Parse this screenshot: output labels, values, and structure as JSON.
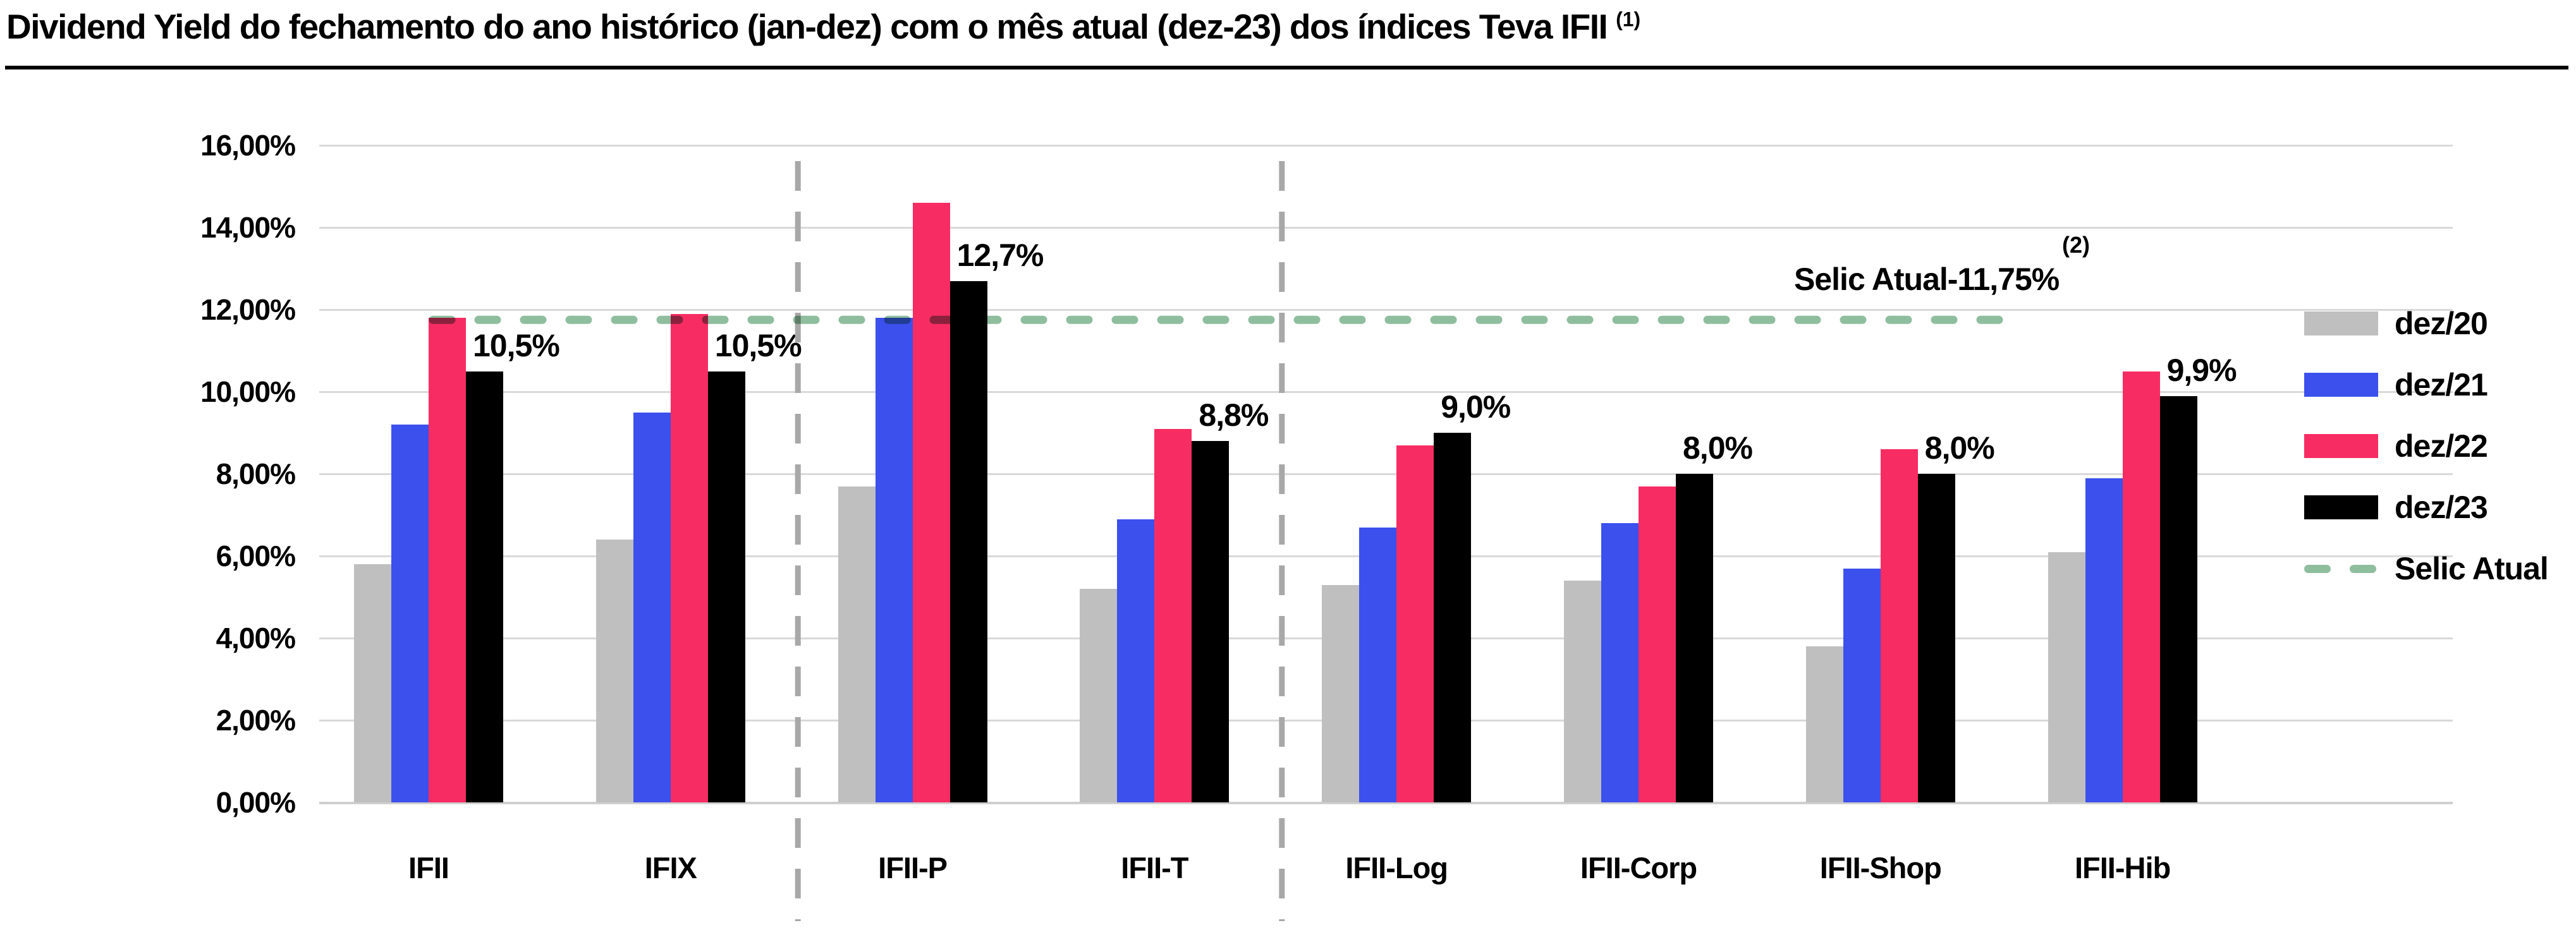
{
  "title": {
    "text": "Dividend Yield do fechamento do ano histórico (jan-dez) com o mês atual (dez-23) dos índices Teva IFII ",
    "superscript": "(1)"
  },
  "selic": {
    "label": "Selic Atual-11,75%",
    "superscript": "(2)",
    "value_pct": 11.75,
    "legend_label": "Selic Atual",
    "color": "#8fbe9f"
  },
  "legend": {
    "items": [
      {
        "label": "dez/20",
        "color": "#bfbfbf",
        "type": "swatch"
      },
      {
        "label": "dez/21",
        "color": "#3b50ec",
        "type": "swatch"
      },
      {
        "label": "dez/22",
        "color": "#f72c62",
        "type": "swatch"
      },
      {
        "label": "dez/23",
        "color": "#000000",
        "type": "swatch"
      },
      {
        "label": "Selic Atual",
        "color": "#8fbe9f",
        "type": "dash"
      }
    ]
  },
  "chart_data": {
    "type": "bar",
    "title": "Dividend Yield do fechamento do ano histórico (jan-dez) com o mês atual (dez-23) dos índices Teva IFII (1)",
    "categories": [
      "IFII",
      "IFIX",
      "IFII-P",
      "IFII-T",
      "IFII-Log",
      "IFII-Corp",
      "IFII-Shop",
      "IFII-Hib"
    ],
    "series": [
      {
        "name": "dez/20",
        "color": "#bfbfbf",
        "values": [
          5.8,
          6.4,
          7.7,
          5.2,
          5.3,
          5.4,
          3.8,
          6.1
        ]
      },
      {
        "name": "dez/21",
        "color": "#3b50ec",
        "values": [
          9.2,
          9.5,
          11.8,
          6.9,
          6.7,
          6.8,
          5.7,
          7.9
        ]
      },
      {
        "name": "dez/22",
        "color": "#f72c62",
        "values": [
          11.8,
          11.9,
          14.6,
          9.1,
          8.7,
          7.7,
          8.6,
          10.5
        ]
      },
      {
        "name": "dez/23",
        "color": "#000000",
        "values": [
          10.5,
          10.5,
          12.7,
          8.8,
          9.0,
          8.0,
          8.0,
          9.9
        ]
      }
    ],
    "dez23_value_labels": [
      "10,5%",
      "10,5%",
      "12,7%",
      "8,8%",
      "9,0%",
      "8,0%",
      "8,0%",
      "9,9%"
    ],
    "ytick_labels": [
      "0,00%",
      "2,00%",
      "4,00%",
      "6,00%",
      "8,00%",
      "10,00%",
      "12,00%",
      "14,00%",
      "16,00%"
    ],
    "ytick_values": [
      0,
      2,
      4,
      6,
      8,
      10,
      12,
      14,
      16
    ],
    "ylim": [
      0,
      16
    ],
    "xlabel": "",
    "ylabel": "",
    "grid": "horizontal",
    "legend_position": "right",
    "reference_line": {
      "label": "Selic Atual-11,75%",
      "value": 11.75,
      "style": "dashed",
      "color": "#8fbe9f"
    },
    "separators_after": [
      "IFIX",
      "IFII-T"
    ],
    "separator_color": "#a8a8a8"
  }
}
